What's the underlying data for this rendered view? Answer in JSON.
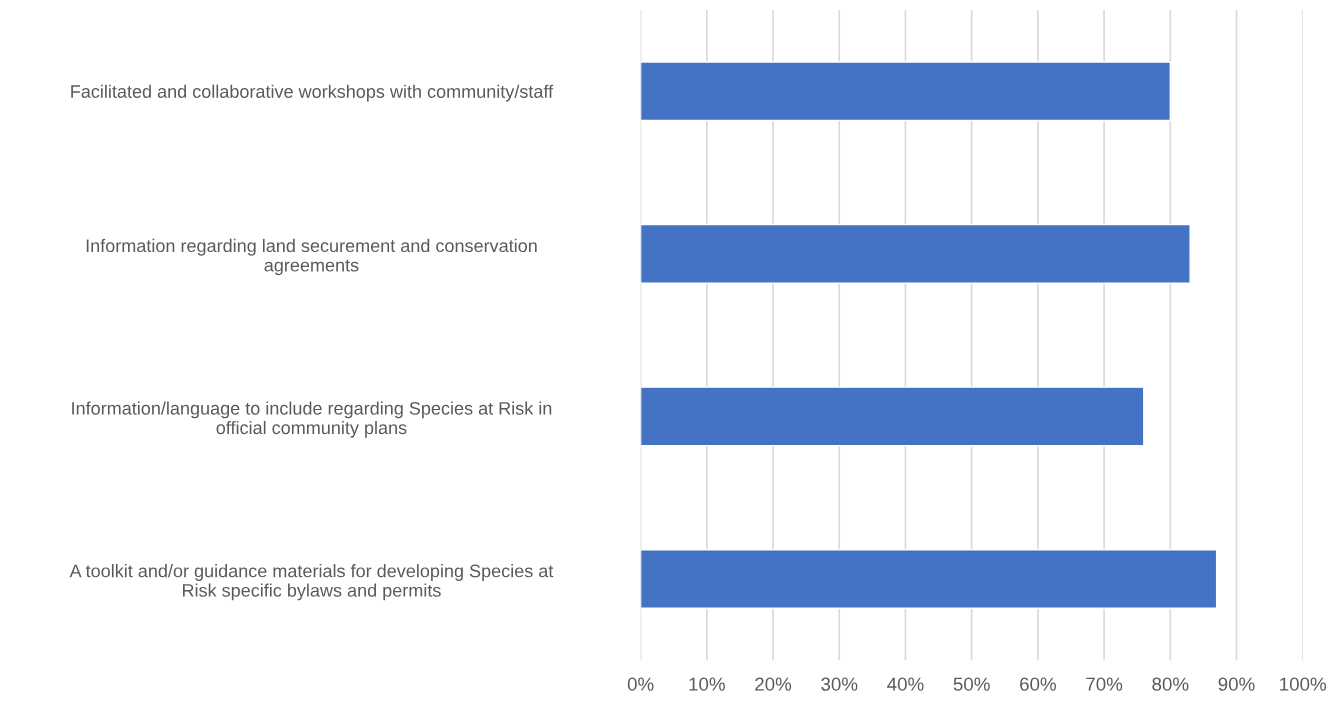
{
  "chart_data": {
    "type": "bar",
    "orientation": "horizontal",
    "categories": [
      "Facilitated and collaborative workshops with community/staff",
      "Information regarding land securement and conservation\nagreements",
      "Information/language to include regarding Species at Risk in\nofficial community plans",
      "A toolkit and/or guidance materials for developing Species at\nRisk specific bylaws and permits"
    ],
    "values": [
      80,
      83,
      76,
      87
    ],
    "color": "#4472c4",
    "xlim": [
      0,
      100
    ],
    "xticks": [
      {
        "value": 0,
        "label": "0%"
      },
      {
        "value": 10,
        "label": "10%"
      },
      {
        "value": 20,
        "label": "20%"
      },
      {
        "value": 30,
        "label": "30%"
      },
      {
        "value": 40,
        "label": "40%"
      },
      {
        "value": 50,
        "label": "50%"
      },
      {
        "value": 60,
        "label": "60%"
      },
      {
        "value": 70,
        "label": "70%"
      },
      {
        "value": 80,
        "label": "80%"
      },
      {
        "value": 90,
        "label": "90%"
      },
      {
        "value": 100,
        "label": "100%"
      }
    ],
    "grid": "x",
    "legend": false
  }
}
